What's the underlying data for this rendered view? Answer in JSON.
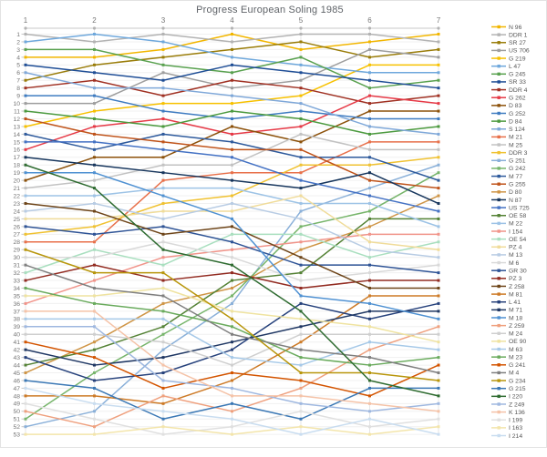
{
  "chart_data": {
    "type": "line",
    "subtype": "bump",
    "title": "Progress European Soling 1985",
    "legend_position": "right",
    "grid": true,
    "x_axis": {
      "position": "top",
      "ticks": [
        "1",
        "2",
        "3",
        "4",
        "5",
        "6",
        "7"
      ]
    },
    "y_axis": {
      "inverted": true,
      "min": 1,
      "max": 53,
      "ticks": [
        "1",
        "2",
        "3",
        "4",
        "5",
        "6",
        "7",
        "8",
        "9",
        "10",
        "11",
        "12",
        "13",
        "14",
        "15",
        "16",
        "17",
        "18",
        "19",
        "20",
        "21",
        "22",
        "23",
        "24",
        "25",
        "26",
        "27",
        "28",
        "29",
        "30",
        "31",
        "32",
        "33",
        "34",
        "35",
        "36",
        "37",
        "38",
        "39",
        "40",
        "41",
        "42",
        "43",
        "44",
        "45",
        "46",
        "47",
        "48",
        "49",
        "50",
        "51",
        "52",
        "53"
      ]
    },
    "colors": {
      "background": "#ffffff",
      "frame_border": "#e3e3e3",
      "axis_line": "#c9c9c9",
      "tick_dot": "#b3b3b3",
      "grid_h": "#f0f0f0",
      "grid_v": "#e6e6e6",
      "tick_text": "#757575",
      "legend_text": "#575757",
      "title_text": "#5f6368"
    },
    "series": [
      {
        "name": "N 96",
        "color": "#f2b600",
        "values": [
          4,
          4,
          3,
          1,
          3,
          2,
          1
        ]
      },
      {
        "name": "DDR 1",
        "color": "#b3b3b3",
        "values": [
          1,
          2,
          1,
          2,
          1,
          1,
          2
        ]
      },
      {
        "name": "SR 27",
        "color": "#9a7d0a",
        "values": [
          7,
          5,
          4,
          3,
          2,
          4,
          3
        ]
      },
      {
        "name": "US 706",
        "color": "#9e9e9e",
        "values": [
          10,
          10,
          6,
          8,
          7,
          3,
          4
        ]
      },
      {
        "name": "G 219",
        "color": "#f7c100",
        "values": [
          13,
          11,
          10,
          10,
          9,
          5,
          5
        ]
      },
      {
        "name": "L 47",
        "color": "#6fa8dc",
        "values": [
          2,
          1,
          2,
          4,
          5,
          6,
          6
        ]
      },
      {
        "name": "G 245",
        "color": "#59a14f",
        "values": [
          3,
          3,
          5,
          6,
          4,
          8,
          7
        ]
      },
      {
        "name": "SR 33",
        "color": "#1f4e96",
        "values": [
          5,
          6,
          7,
          5,
          6,
          7,
          8
        ]
      },
      {
        "name": "DDR 4",
        "color": "#a03123",
        "values": [
          8,
          7,
          9,
          7,
          8,
          10,
          9
        ]
      },
      {
        "name": "G 262",
        "color": "#e63946",
        "values": [
          16,
          13,
          12,
          14,
          13,
          9,
          10
        ]
      },
      {
        "name": "D 83",
        "color": "#8c510a",
        "values": [
          20,
          17,
          17,
          13,
          15,
          11,
          11
        ]
      },
      {
        "name": "G 252",
        "color": "#3f7cc1",
        "values": [
          9,
          9,
          11,
          12,
          11,
          12,
          12
        ]
      },
      {
        "name": "D 84",
        "color": "#4c9a3f",
        "values": [
          11,
          12,
          13,
          11,
          12,
          14,
          13
        ]
      },
      {
        "name": "S 124",
        "color": "#7fa8d9",
        "values": [
          6,
          8,
          8,
          9,
          10,
          13,
          14
        ]
      },
      {
        "name": "M 21",
        "color": "#e8704a",
        "values": [
          28,
          28,
          20,
          19,
          19,
          15,
          15
        ]
      },
      {
        "name": "M 25",
        "color": "#c2c2c2",
        "values": [
          21,
          20,
          18,
          18,
          14,
          16,
          16
        ]
      },
      {
        "name": "DDR 3",
        "color": "#f0c232",
        "values": [
          27,
          26,
          23,
          22,
          18,
          18,
          17
        ]
      },
      {
        "name": "G 251",
        "color": "#8ab0d9",
        "values": [
          52,
          50,
          42,
          36,
          24,
          21,
          18
        ]
      },
      {
        "name": "G 242",
        "color": "#77b56b",
        "values": [
          51,
          45,
          40,
          35,
          26,
          24,
          19
        ]
      },
      {
        "name": "M 77",
        "color": "#2e5a9c",
        "values": [
          14,
          16,
          14,
          15,
          17,
          17,
          20
        ]
      },
      {
        "name": "G 255",
        "color": "#c0541b",
        "values": [
          12,
          14,
          15,
          16,
          16,
          20,
          21
        ]
      },
      {
        "name": "D 80",
        "color": "#cf9546",
        "values": [
          45,
          41,
          36,
          34,
          29,
          26,
          22
        ]
      },
      {
        "name": "N 87",
        "color": "#17365d",
        "values": [
          17,
          18,
          19,
          20,
          21,
          19,
          23
        ]
      },
      {
        "name": "US 725",
        "color": "#4472c4",
        "values": [
          15,
          15,
          16,
          17,
          20,
          22,
          24
        ]
      },
      {
        "name": "OE 58",
        "color": "#548235",
        "values": [
          44,
          42,
          39,
          33,
          32,
          25,
          25
        ]
      },
      {
        "name": "M 22",
        "color": "#9dc3e6",
        "values": [
          22,
          22,
          21,
          21,
          23,
          23,
          26
        ]
      },
      {
        "name": "I 154",
        "color": "#f1948a",
        "values": [
          36,
          33,
          30,
          29,
          28,
          27,
          27
        ]
      },
      {
        "name": "OE 54",
        "color": "#a9dfbf",
        "values": [
          32,
          29,
          31,
          27,
          27,
          30,
          28
        ]
      },
      {
        "name": "PZ 4",
        "color": "#f0dc9a",
        "values": [
          25,
          25,
          24,
          24,
          22,
          28,
          29
        ]
      },
      {
        "name": "M 13",
        "color": "#b8cce4",
        "values": [
          24,
          23,
          25,
          23,
          25,
          29,
          30
        ]
      },
      {
        "name": "M 6",
        "color": "#d9d9d9",
        "values": [
          30,
          30,
          28,
          30,
          33,
          32,
          31
        ]
      },
      {
        "name": "GR 30",
        "color": "#2f5496",
        "values": [
          26,
          27,
          26,
          28,
          31,
          31,
          32
        ]
      },
      {
        "name": "PZ 3",
        "color": "#922b21",
        "values": [
          33,
          31,
          33,
          32,
          34,
          33,
          33
        ]
      },
      {
        "name": "Z 258",
        "color": "#6e4519",
        "values": [
          23,
          24,
          27,
          26,
          30,
          34,
          34
        ]
      },
      {
        "name": "M 81",
        "color": "#cd7a26",
        "values": [
          48,
          48,
          49,
          46,
          41,
          35,
          35
        ]
      },
      {
        "name": "L 41",
        "color": "#27427c",
        "values": [
          43,
          46,
          45,
          42,
          36,
          38,
          36
        ]
      },
      {
        "name": "M 71",
        "color": "#203864",
        "values": [
          42,
          44,
          43,
          41,
          39,
          37,
          37
        ]
      },
      {
        "name": "M 18",
        "color": "#4f91d2",
        "values": [
          19,
          19,
          22,
          25,
          35,
          36,
          38
        ]
      },
      {
        "name": "Z 259",
        "color": "#efa07e",
        "values": [
          50,
          52,
          48,
          50,
          47,
          42,
          39
        ]
      },
      {
        "name": "M 24",
        "color": "#cfcfcf",
        "values": [
          40,
          40,
          41,
          44,
          40,
          40,
          40
        ]
      },
      {
        "name": "OE 90",
        "color": "#efe3a0",
        "values": [
          35,
          35,
          34,
          37,
          38,
          39,
          41
        ]
      },
      {
        "name": "M 63",
        "color": "#a6c9e8",
        "values": [
          38,
          38,
          38,
          43,
          44,
          41,
          42
        ]
      },
      {
        "name": "M 23",
        "color": "#6aab5d",
        "values": [
          34,
          36,
          37,
          39,
          43,
          44,
          43
        ]
      },
      {
        "name": "G 241",
        "color": "#d35400",
        "values": [
          41,
          43,
          47,
          45,
          46,
          48,
          44
        ]
      },
      {
        "name": "M 4",
        "color": "#7f7f7f",
        "values": [
          31,
          34,
          35,
          40,
          42,
          43,
          45
        ]
      },
      {
        "name": "G 234",
        "color": "#b8960c",
        "values": [
          29,
          32,
          32,
          38,
          45,
          45,
          46
        ]
      },
      {
        "name": "G 215",
        "color": "#3b78b5",
        "values": [
          46,
          47,
          51,
          49,
          51,
          47,
          47
        ]
      },
      {
        "name": "I 220",
        "color": "#2e6b30",
        "values": [
          18,
          21,
          29,
          31,
          37,
          46,
          48
        ]
      },
      {
        "name": "Z 249",
        "color": "#9fb8e0",
        "values": [
          39,
          39,
          46,
          47,
          49,
          50,
          49
        ]
      },
      {
        "name": "K 136",
        "color": "#f5c3a8",
        "values": [
          37,
          37,
          44,
          48,
          48,
          49,
          50
        ]
      },
      {
        "name": "I 199",
        "color": "#e0e0e0",
        "values": [
          49,
          51,
          53,
          52,
          50,
          52,
          51
        ]
      },
      {
        "name": "I 163",
        "color": "#f3e5ab",
        "values": [
          53,
          53,
          52,
          53,
          52,
          53,
          52
        ]
      },
      {
        "name": "I 214",
        "color": "#c9ddf0",
        "values": [
          47,
          49,
          50,
          51,
          53,
          51,
          53
        ]
      }
    ]
  }
}
